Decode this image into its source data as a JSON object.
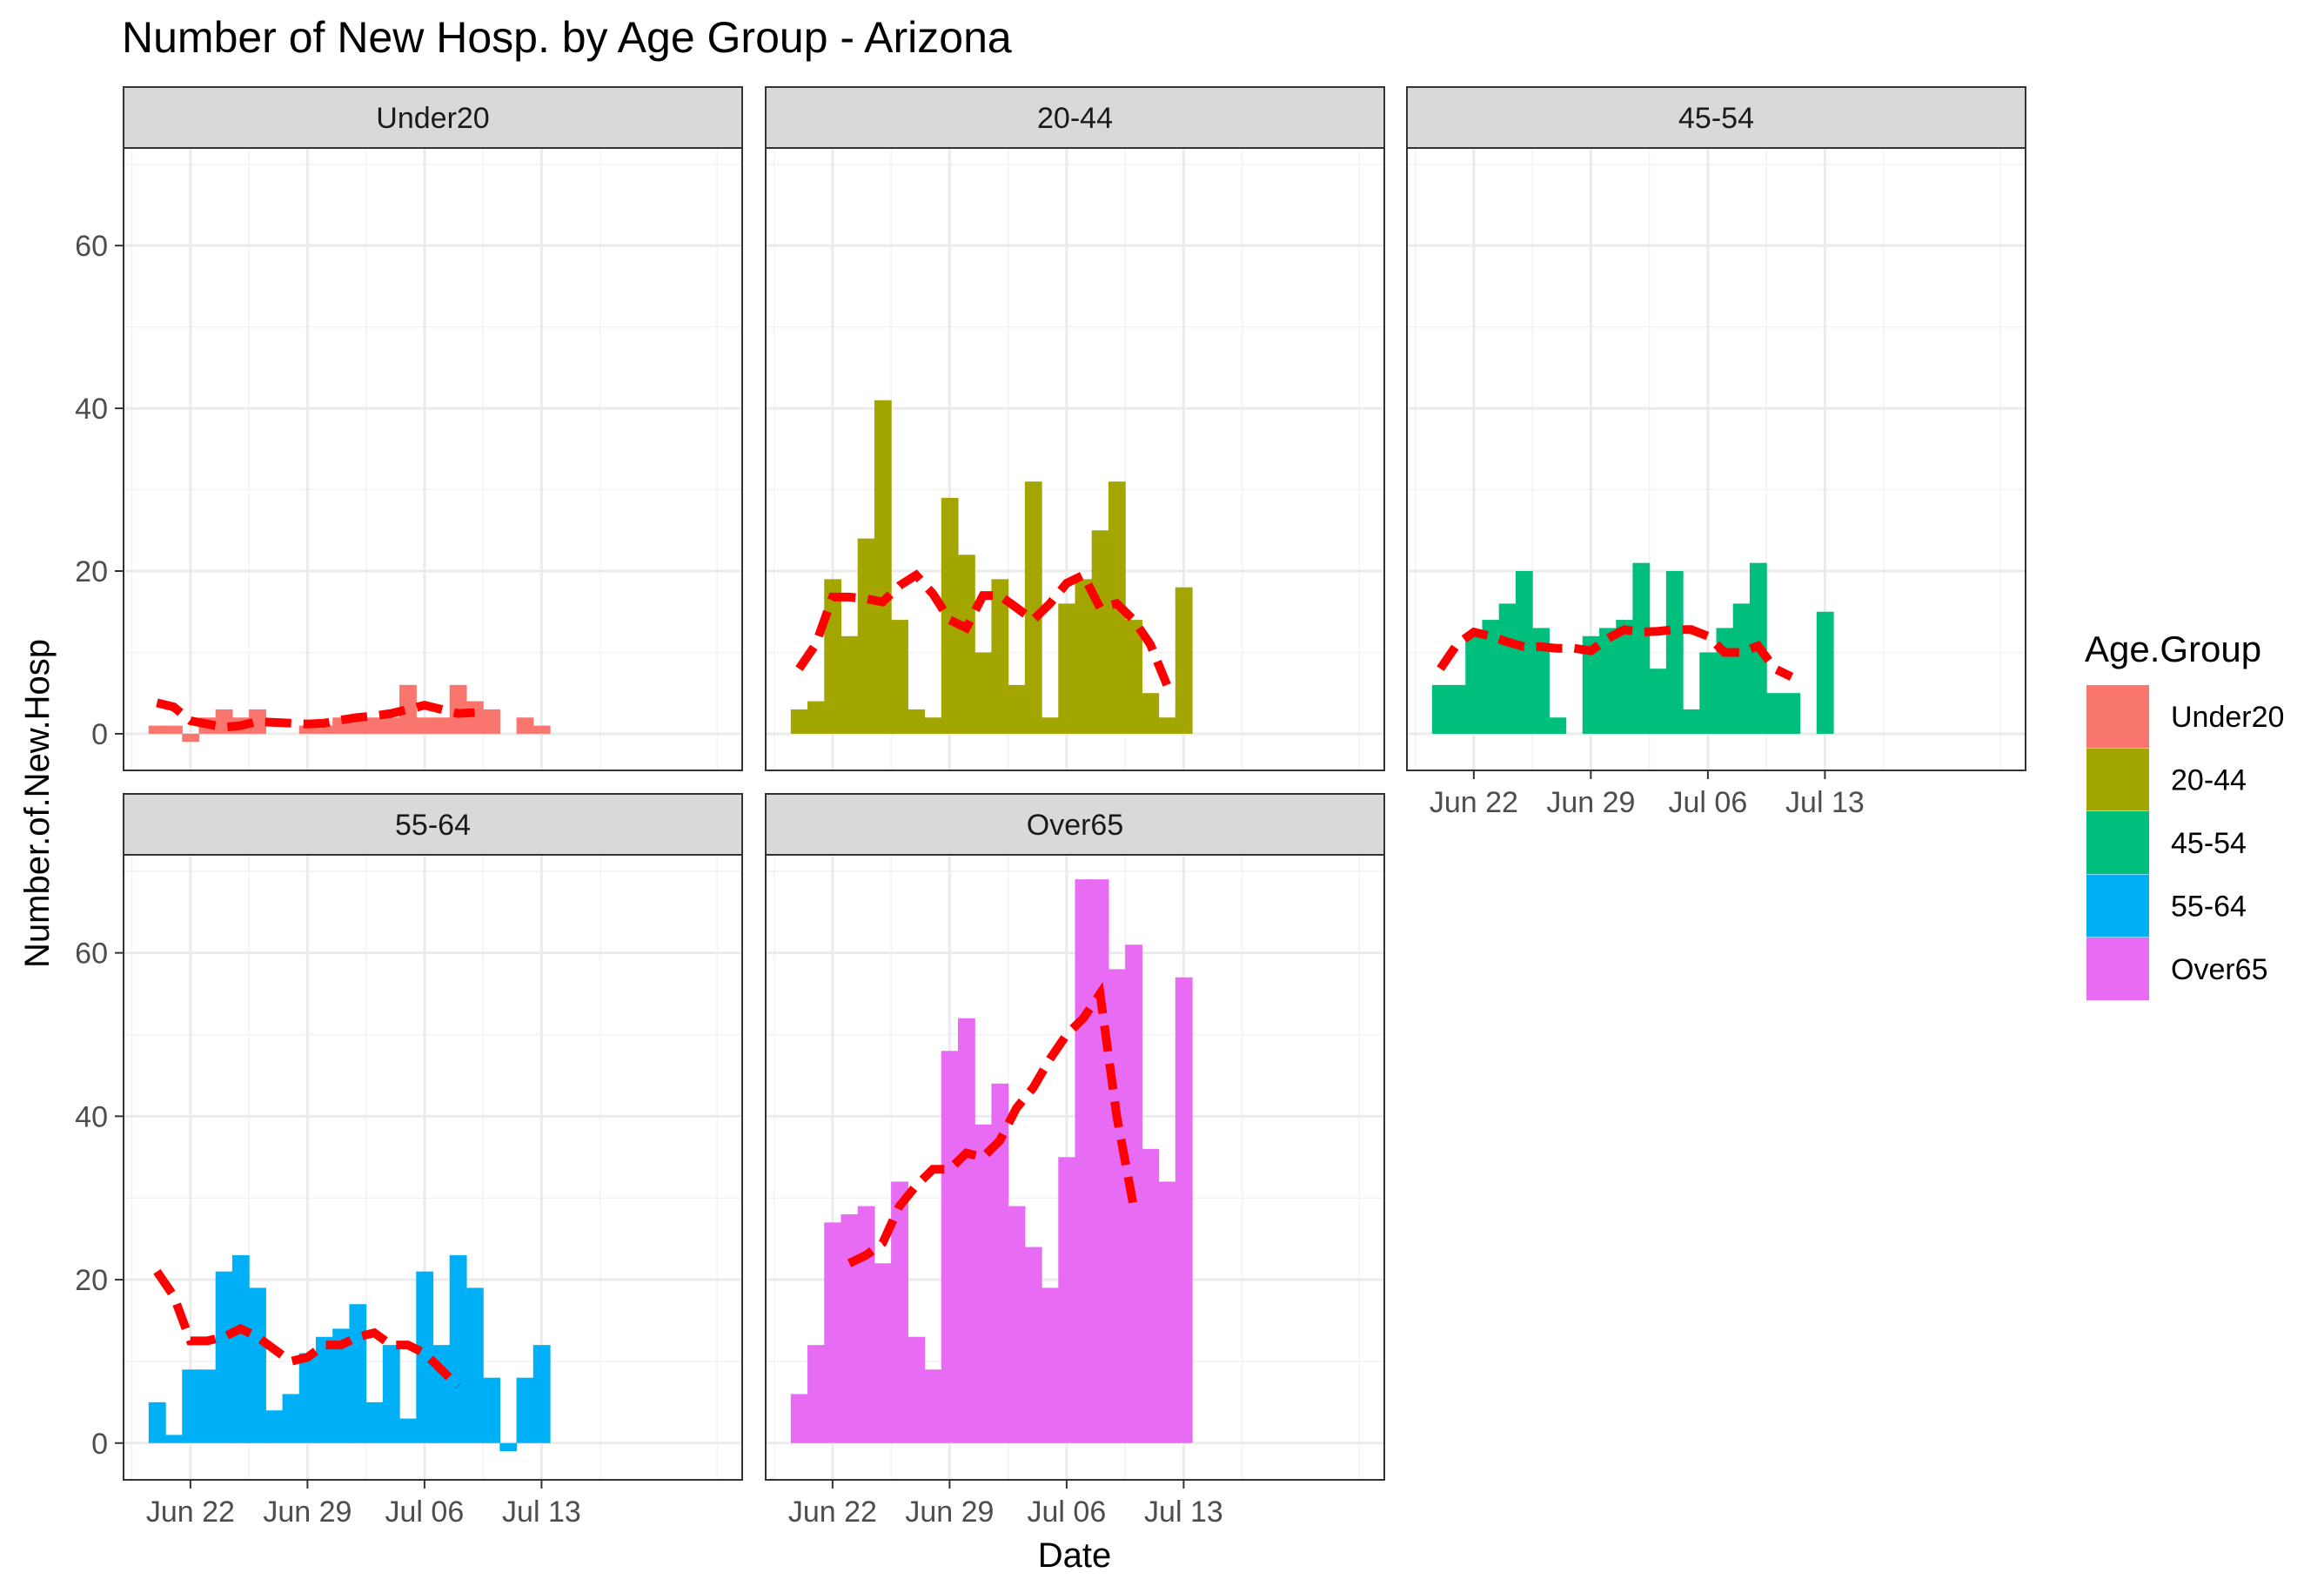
{
  "chart_data": {
    "type": "bar",
    "title": "Number of New Hosp. by Age Group - Arizona",
    "xlabel": "Date",
    "ylabel": "Number.of.New.Hosp",
    "ylim": [
      -4.5,
      72
    ],
    "yticks": [
      0,
      20,
      40,
      60
    ],
    "xlim": [
      -2,
      35
    ],
    "xtick_labels": [
      "Jun 22",
      "Jun 29",
      "Jul 06",
      "Jul 13"
    ],
    "xtick_days": [
      2,
      9,
      16,
      23
    ],
    "dates": [
      "Jun 20",
      "Jun 21",
      "Jun 22",
      "Jun 23",
      "Jun 24",
      "Jun 25",
      "Jun 26",
      "Jun 27",
      "Jun 28",
      "Jun 29",
      "Jun 30",
      "Jul 01",
      "Jul 02",
      "Jul 03",
      "Jul 04",
      "Jul 05",
      "Jul 06",
      "Jul 07",
      "Jul 08",
      "Jul 09",
      "Jul 10",
      "Jul 11",
      "Jul 12",
      "Jul 13",
      "Jul 14",
      "Jul 15"
    ],
    "grid": true,
    "facet_layout": "3 columns, 2 rows",
    "legend": {
      "title": "Age.Group",
      "position": "right",
      "items": [
        {
          "label": "Under20",
          "color": "#F8766D"
        },
        {
          "label": "20-44",
          "color": "#A3A500"
        },
        {
          "label": "45-54",
          "color": "#00BF7D"
        },
        {
          "label": "55-64",
          "color": "#00B0F6"
        },
        {
          "label": "Over65",
          "color": "#E76BF3"
        }
      ]
    },
    "trend_line": {
      "color": "#FF0000",
      "style": "dashed"
    },
    "panels": [
      {
        "name": "Under20",
        "color": "#F8766D",
        "values": [
          1,
          1,
          -1,
          2,
          3,
          2,
          3,
          0,
          0,
          1,
          1,
          2,
          2,
          2,
          2,
          6,
          2,
          2,
          6,
          4,
          3,
          0,
          2,
          1,
          0,
          0
        ],
        "trend": [
          [
            0,
            3.8
          ],
          [
            1,
            3.3
          ],
          [
            2,
            1.6
          ],
          [
            3,
            1.2
          ],
          [
            4,
            0.8
          ],
          [
            5,
            1.0
          ],
          [
            6,
            1.5
          ],
          [
            7,
            1.4
          ],
          [
            8,
            1.3
          ],
          [
            9,
            1.2
          ],
          [
            10,
            1.3
          ],
          [
            11,
            1.7
          ],
          [
            12,
            2.0
          ],
          [
            13,
            2.2
          ],
          [
            14,
            2.5
          ],
          [
            15,
            3.0
          ],
          [
            16,
            3.5
          ],
          [
            17,
            3.0
          ],
          [
            18,
            2.5
          ],
          [
            19,
            2.6
          ]
        ]
      },
      {
        "name": "20-44",
        "color": "#A3A500",
        "values": [
          3,
          4,
          19,
          12,
          24,
          41,
          14,
          3,
          2,
          29,
          22,
          10,
          19,
          6,
          31,
          2,
          16,
          19,
          25,
          31,
          14,
          5,
          2,
          18,
          0,
          0
        ],
        "trend": [
          [
            0,
            8
          ],
          [
            1,
            11
          ],
          [
            2,
            16.8
          ],
          [
            3,
            16.8
          ],
          [
            4,
            16.6
          ],
          [
            5,
            16.2
          ],
          [
            6,
            18.2
          ],
          [
            7,
            19.5
          ],
          [
            8,
            17.2
          ],
          [
            9,
            14
          ],
          [
            10,
            13
          ],
          [
            11,
            17
          ],
          [
            12,
            17
          ],
          [
            13,
            15.5
          ],
          [
            14,
            14
          ],
          [
            15,
            16
          ],
          [
            16,
            18.5
          ],
          [
            17,
            19.5
          ],
          [
            18,
            15.5
          ],
          [
            19,
            16
          ],
          [
            20,
            14
          ],
          [
            21,
            11
          ],
          [
            22,
            6
          ]
        ]
      },
      {
        "name": "45-54",
        "color": "#00BF7D",
        "values": [
          6,
          6,
          12,
          14,
          16,
          20,
          13,
          2,
          0,
          12,
          13,
          14,
          21,
          8,
          20,
          3,
          10,
          13,
          16,
          21,
          5,
          5,
          0,
          15,
          0,
          0
        ],
        "trend": [
          [
            0,
            8
          ],
          [
            1,
            11
          ],
          [
            2,
            12.5
          ],
          [
            3,
            12
          ],
          [
            4,
            11.3
          ],
          [
            5,
            10.7
          ],
          [
            6,
            10.7
          ],
          [
            7,
            10.5
          ],
          [
            8,
            10.5
          ],
          [
            9,
            10.2
          ],
          [
            10,
            11.7
          ],
          [
            11,
            12.8
          ],
          [
            12,
            12.5
          ],
          [
            13,
            12.6
          ],
          [
            14,
            12.8
          ],
          [
            15,
            12.8
          ],
          [
            16,
            12
          ],
          [
            17,
            10
          ],
          [
            18,
            10
          ],
          [
            19,
            10.8
          ],
          [
            20,
            8
          ],
          [
            21,
            7
          ]
        ]
      },
      {
        "name": "55-64",
        "color": "#00B0F6",
        "values": [
          5,
          1,
          9,
          9,
          21,
          23,
          19,
          4,
          6,
          11,
          13,
          14,
          17,
          5,
          12,
          3,
          21,
          12,
          23,
          19,
          8,
          -1,
          8,
          12,
          0,
          0
        ],
        "trend": [
          [
            0,
            21
          ],
          [
            1,
            18
          ],
          [
            2,
            12.5
          ],
          [
            3,
            12.5
          ],
          [
            4,
            13
          ],
          [
            5,
            14
          ],
          [
            6,
            13
          ],
          [
            7,
            11.5
          ],
          [
            8,
            10
          ],
          [
            9,
            10.5
          ],
          [
            10,
            12
          ],
          [
            11,
            12
          ],
          [
            12,
            13
          ],
          [
            13,
            13.5
          ],
          [
            14,
            12
          ],
          [
            15,
            12
          ],
          [
            16,
            11
          ],
          [
            17,
            9
          ],
          [
            18,
            7
          ]
        ]
      },
      {
        "name": "Over65",
        "color": "#E76BF3",
        "values": [
          6,
          12,
          27,
          28,
          29,
          22,
          32,
          13,
          9,
          48,
          52,
          39,
          44,
          29,
          24,
          19,
          35,
          69,
          69,
          58,
          61,
          36,
          32,
          57,
          0,
          0
        ],
        "trend": [
          [
            3,
            22
          ],
          [
            4,
            23
          ],
          [
            5,
            24.5
          ],
          [
            6,
            29
          ],
          [
            7,
            31.5
          ],
          [
            8,
            33.5
          ],
          [
            9,
            33.5
          ],
          [
            10,
            35.5
          ],
          [
            11,
            35
          ],
          [
            12,
            37
          ],
          [
            13,
            41
          ],
          [
            14,
            43.5
          ],
          [
            15,
            47
          ],
          [
            16,
            50
          ],
          [
            17,
            52
          ],
          [
            18,
            55
          ],
          [
            19,
            40
          ],
          [
            20,
            29
          ]
        ]
      }
    ]
  }
}
